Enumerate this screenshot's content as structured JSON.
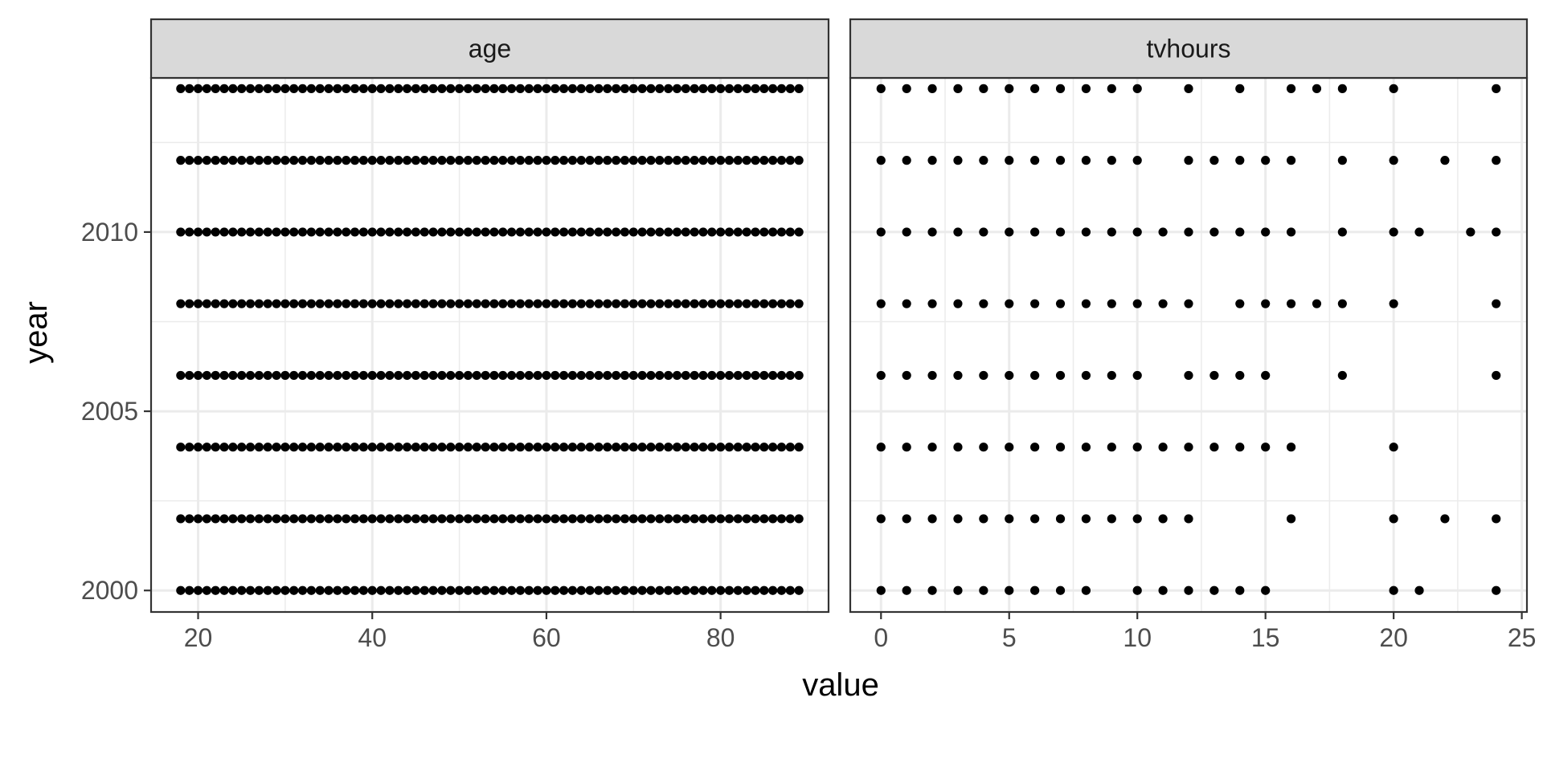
{
  "chart_data": {
    "type": "scatter",
    "facet": "wrap",
    "xlabel": "value",
    "ylabel": "year",
    "y_ticks": [
      2000,
      2005,
      2010
    ],
    "ylim": [
      1999.4,
      2014.3
    ],
    "grid": true,
    "theme": "bw",
    "point_color": "#000000",
    "panels": [
      {
        "strip_label": "age",
        "xlim": [
          14.6,
          92.4
        ],
        "x_ticks": [
          20,
          40,
          60,
          80
        ],
        "series": [
          {
            "y": 2000,
            "x": [
              18,
              19,
              20,
              21,
              22,
              23,
              24,
              25,
              26,
              27,
              28,
              29,
              30,
              31,
              32,
              33,
              34,
              35,
              36,
              37,
              38,
              39,
              40,
              41,
              42,
              43,
              44,
              45,
              46,
              47,
              48,
              49,
              50,
              51,
              52,
              53,
              54,
              55,
              56,
              57,
              58,
              59,
              60,
              61,
              62,
              63,
              64,
              65,
              66,
              67,
              68,
              69,
              70,
              71,
              72,
              73,
              74,
              75,
              76,
              77,
              78,
              79,
              80,
              81,
              82,
              83,
              84,
              85,
              86,
              87,
              88,
              89
            ]
          },
          {
            "y": 2002,
            "x": [
              18,
              19,
              20,
              21,
              22,
              23,
              24,
              25,
              26,
              27,
              28,
              29,
              30,
              31,
              32,
              33,
              34,
              35,
              36,
              37,
              38,
              39,
              40,
              41,
              42,
              43,
              44,
              45,
              46,
              47,
              48,
              49,
              50,
              51,
              52,
              53,
              54,
              55,
              56,
              57,
              58,
              59,
              60,
              61,
              62,
              63,
              64,
              65,
              66,
              67,
              68,
              69,
              70,
              71,
              72,
              73,
              74,
              75,
              76,
              77,
              78,
              79,
              80,
              81,
              82,
              83,
              84,
              85,
              86,
              87,
              88,
              89
            ]
          },
          {
            "y": 2004,
            "x": [
              18,
              19,
              20,
              21,
              22,
              23,
              24,
              25,
              26,
              27,
              28,
              29,
              30,
              31,
              32,
              33,
              34,
              35,
              36,
              37,
              38,
              39,
              40,
              41,
              42,
              43,
              44,
              45,
              46,
              47,
              48,
              49,
              50,
              51,
              52,
              53,
              54,
              55,
              56,
              57,
              58,
              59,
              60,
              61,
              62,
              63,
              64,
              65,
              66,
              67,
              68,
              69,
              70,
              71,
              72,
              73,
              74,
              75,
              76,
              77,
              78,
              79,
              80,
              81,
              82,
              83,
              84,
              85,
              86,
              87,
              88,
              89
            ]
          },
          {
            "y": 2006,
            "x": [
              18,
              19,
              20,
              21,
              22,
              23,
              24,
              25,
              26,
              27,
              28,
              29,
              30,
              31,
              32,
              33,
              34,
              35,
              36,
              37,
              38,
              39,
              40,
              41,
              42,
              43,
              44,
              45,
              46,
              47,
              48,
              49,
              50,
              51,
              52,
              53,
              54,
              55,
              56,
              57,
              58,
              59,
              60,
              61,
              62,
              63,
              64,
              65,
              66,
              67,
              68,
              69,
              70,
              71,
              72,
              73,
              74,
              75,
              76,
              77,
              78,
              79,
              80,
              81,
              82,
              83,
              84,
              85,
              86,
              87,
              88,
              89
            ]
          },
          {
            "y": 2008,
            "x": [
              18,
              19,
              20,
              21,
              22,
              23,
              24,
              25,
              26,
              27,
              28,
              29,
              30,
              31,
              32,
              33,
              34,
              35,
              36,
              37,
              38,
              39,
              40,
              41,
              42,
              43,
              44,
              45,
              46,
              47,
              48,
              49,
              50,
              51,
              52,
              53,
              54,
              55,
              56,
              57,
              58,
              59,
              60,
              61,
              62,
              63,
              64,
              65,
              66,
              67,
              68,
              69,
              70,
              71,
              72,
              73,
              74,
              75,
              76,
              77,
              78,
              79,
              80,
              81,
              82,
              83,
              84,
              85,
              86,
              87,
              88,
              89
            ]
          },
          {
            "y": 2010,
            "x": [
              18,
              19,
              20,
              21,
              22,
              23,
              24,
              25,
              26,
              27,
              28,
              29,
              30,
              31,
              32,
              33,
              34,
              35,
              36,
              37,
              38,
              39,
              40,
              41,
              42,
              43,
              44,
              45,
              46,
              47,
              48,
              49,
              50,
              51,
              52,
              53,
              54,
              55,
              56,
              57,
              58,
              59,
              60,
              61,
              62,
              63,
              64,
              65,
              66,
              67,
              68,
              69,
              70,
              71,
              72,
              73,
              74,
              75,
              76,
              77,
              78,
              79,
              80,
              81,
              82,
              83,
              84,
              85,
              86,
              87,
              88,
              89
            ]
          },
          {
            "y": 2012,
            "x": [
              18,
              19,
              20,
              21,
              22,
              23,
              24,
              25,
              26,
              27,
              28,
              29,
              30,
              31,
              32,
              33,
              34,
              35,
              36,
              37,
              38,
              39,
              40,
              41,
              42,
              43,
              44,
              45,
              46,
              47,
              48,
              49,
              50,
              51,
              52,
              53,
              54,
              55,
              56,
              57,
              58,
              59,
              60,
              61,
              62,
              63,
              64,
              65,
              66,
              67,
              68,
              69,
              70,
              71,
              72,
              73,
              74,
              75,
              76,
              77,
              78,
              79,
              80,
              81,
              82,
              83,
              84,
              85,
              86,
              87,
              88,
              89
            ]
          },
          {
            "y": 2014,
            "x": [
              18,
              19,
              20,
              21,
              22,
              23,
              24,
              25,
              26,
              27,
              28,
              29,
              30,
              31,
              32,
              33,
              34,
              35,
              36,
              37,
              38,
              39,
              40,
              41,
              42,
              43,
              44,
              45,
              46,
              47,
              48,
              49,
              50,
              51,
              52,
              53,
              54,
              55,
              56,
              57,
              58,
              59,
              60,
              61,
              62,
              63,
              64,
              65,
              66,
              67,
              68,
              69,
              70,
              71,
              72,
              73,
              74,
              75,
              76,
              77,
              78,
              79,
              80,
              81,
              82,
              83,
              84,
              85,
              86,
              87,
              88,
              89
            ]
          }
        ]
      },
      {
        "strip_label": "tvhours",
        "xlim": [
          -1.2,
          25.2
        ],
        "x_ticks": [
          0,
          5,
          10,
          15,
          20,
          25
        ],
        "series": [
          {
            "y": 2000,
            "x": [
              0,
              1,
              2,
              3,
              4,
              5,
              6,
              7,
              8,
              10,
              11,
              12,
              13,
              14,
              15,
              20,
              21,
              24
            ]
          },
          {
            "y": 2002,
            "x": [
              0,
              1,
              2,
              3,
              4,
              5,
              6,
              7,
              8,
              9,
              10,
              11,
              12,
              16,
              20,
              22,
              24
            ]
          },
          {
            "y": 2004,
            "x": [
              0,
              1,
              2,
              3,
              4,
              5,
              6,
              7,
              8,
              9,
              10,
              11,
              12,
              13,
              14,
              15,
              16,
              20
            ]
          },
          {
            "y": 2006,
            "x": [
              0,
              1,
              2,
              3,
              4,
              5,
              6,
              7,
              8,
              9,
              10,
              12,
              13,
              14,
              15,
              18,
              24
            ]
          },
          {
            "y": 2008,
            "x": [
              0,
              1,
              2,
              3,
              4,
              5,
              6,
              7,
              8,
              9,
              10,
              11,
              12,
              14,
              15,
              16,
              17,
              18,
              20,
              24
            ]
          },
          {
            "y": 2010,
            "x": [
              0,
              1,
              2,
              3,
              4,
              5,
              6,
              7,
              8,
              9,
              10,
              11,
              12,
              13,
              14,
              15,
              16,
              18,
              20,
              21,
              23,
              24
            ]
          },
          {
            "y": 2012,
            "x": [
              0,
              1,
              2,
              3,
              4,
              5,
              6,
              7,
              8,
              9,
              10,
              12,
              13,
              14,
              15,
              16,
              18,
              20,
              22,
              24
            ]
          },
          {
            "y": 2014,
            "x": [
              0,
              1,
              2,
              3,
              4,
              5,
              6,
              7,
              8,
              9,
              10,
              12,
              14,
              16,
              17,
              18,
              20,
              24
            ]
          }
        ]
      }
    ]
  }
}
